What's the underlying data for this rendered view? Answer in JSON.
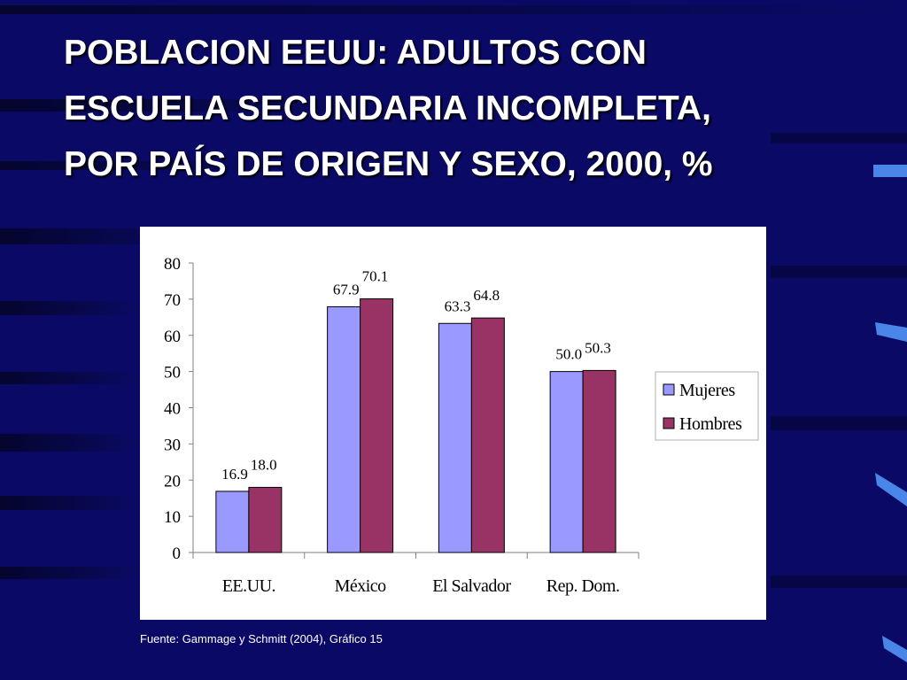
{
  "slide": {
    "title_lines": [
      "POBLACION EEUU: ADULTOS CON",
      "ESCUELA SECUNDARIA INCOMPLETA,",
      "POR PAÍS DE ORIGEN Y SEXO, 2000, %"
    ],
    "source": "Fuente: Gammage y Schmitt (2004), Gráfico 15"
  },
  "colors": {
    "background": "#0a0a66",
    "mujeres": "#9999ff",
    "hombres": "#993366"
  },
  "chart_data": {
    "type": "bar",
    "categories": [
      "EE.UU.",
      "México",
      "El Salvador",
      "Rep. Dom."
    ],
    "series": [
      {
        "name": "Mujeres",
        "values": [
          16.9,
          67.9,
          63.3,
          50.0
        ],
        "labels": [
          "16.9",
          "67.9",
          "63.3",
          "50.0"
        ]
      },
      {
        "name": "Hombres",
        "values": [
          18.0,
          70.1,
          64.8,
          50.3
        ],
        "labels": [
          "18.0",
          "70.1",
          "64.8",
          "50.3"
        ]
      }
    ],
    "yticks": [
      "0",
      "10",
      "20",
      "30",
      "40",
      "50",
      "60",
      "70",
      "80"
    ],
    "ylim": [
      0,
      80
    ],
    "legend": "right",
    "grid": false
  }
}
